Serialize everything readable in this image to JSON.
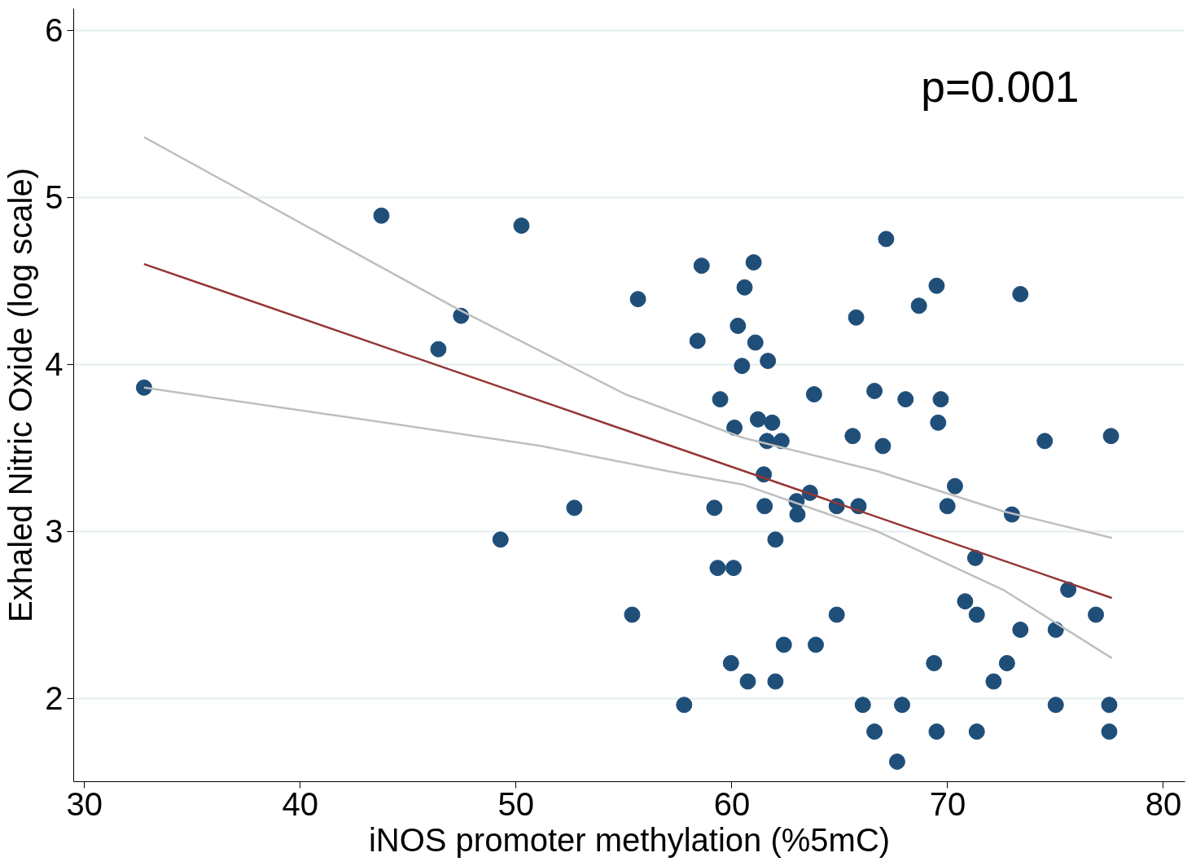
{
  "chart_data": {
    "type": "scatter",
    "xlabel": "iNOS promoter methylation (%5mC)",
    "ylabel": "Exhaled Nitric Oxide (log scale)",
    "annotations": [
      "p=0.001"
    ],
    "xlim": [
      29.5,
      81
    ],
    "ylim": [
      1.5,
      6.13
    ],
    "xticks": [
      30,
      40,
      50,
      60,
      70,
      80
    ],
    "yticks": [
      2,
      3,
      4,
      5,
      6
    ],
    "grid": "y",
    "series": [
      {
        "marker": "circle",
        "color": "#1f4e79",
        "x": [
          32.76,
          43.76,
          46.4,
          47.45,
          50.25,
          49.28,
          52.7,
          55.65,
          55.38,
          57.79,
          58.41,
          58.6,
          59.19,
          59.46,
          59.34,
          60.08,
          59.96,
          60.12,
          60.28,
          60.47,
          60.59,
          60.74,
          61.01,
          61.09,
          61.21,
          61.48,
          61.67,
          61.52,
          61.63,
          61.87,
          62.02,
          62.02,
          62.3,
          62.41,
          63.0,
          63.04,
          63.62,
          63.81,
          63.89,
          64.86,
          64.86,
          65.6,
          65.76,
          65.87,
          66.07,
          66.61,
          66.61,
          67.0,
          67.15,
          67.66,
          67.89,
          68.05,
          68.67,
          69.37,
          69.49,
          69.49,
          69.56,
          69.68,
          69.99,
          70.34,
          70.81,
          71.28,
          71.35,
          71.35,
          72.13,
          72.75,
          72.98,
          73.37,
          73.37,
          74.5,
          75.01,
          75.01,
          75.59,
          76.87,
          77.49,
          77.49,
          77.57
        ],
        "values": [
          3.86,
          4.89,
          4.09,
          4.29,
          4.83,
          2.95,
          3.14,
          4.39,
          2.5,
          1.96,
          4.14,
          4.59,
          3.14,
          3.79,
          2.78,
          2.78,
          2.21,
          3.62,
          4.23,
          3.99,
          4.46,
          2.1,
          4.61,
          4.13,
          3.67,
          3.34,
          4.02,
          3.15,
          3.54,
          3.65,
          2.95,
          2.1,
          3.54,
          2.32,
          3.18,
          3.1,
          3.23,
          3.82,
          2.32,
          3.15,
          2.5,
          3.57,
          4.28,
          3.15,
          1.96,
          3.84,
          1.8,
          3.51,
          4.75,
          1.62,
          1.96,
          3.79,
          4.35,
          2.21,
          4.47,
          1.8,
          3.65,
          3.79,
          3.15,
          3.27,
          2.58,
          2.84,
          2.5,
          1.8,
          2.1,
          2.21,
          3.1,
          2.41,
          4.42,
          3.54,
          2.41,
          1.96,
          2.65,
          2.5,
          1.96,
          1.8,
          3.57
        ]
      },
      {
        "type": "line",
        "marker": "none",
        "color": "#943634",
        "x": [
          32.76,
          77.61
        ],
        "values": [
          4.6,
          2.6
        ]
      },
      {
        "type": "line",
        "marker": "none",
        "color": "#bfbfbf",
        "x": [
          32.76,
          47.3,
          55.07,
          60.5,
          66.73,
          72.56,
          77.61
        ],
        "values": [
          5.36,
          4.33,
          3.82,
          3.56,
          3.36,
          3.12,
          2.96
        ]
      },
      {
        "type": "line",
        "marker": "none",
        "color": "#bfbfbf",
        "x": [
          32.76,
          43.41,
          51.18,
          57.01,
          60.5,
          66.73,
          72.56,
          77.61
        ],
        "values": [
          3.86,
          3.66,
          3.51,
          3.36,
          3.28,
          3.0,
          2.65,
          2.24
        ]
      }
    ]
  }
}
